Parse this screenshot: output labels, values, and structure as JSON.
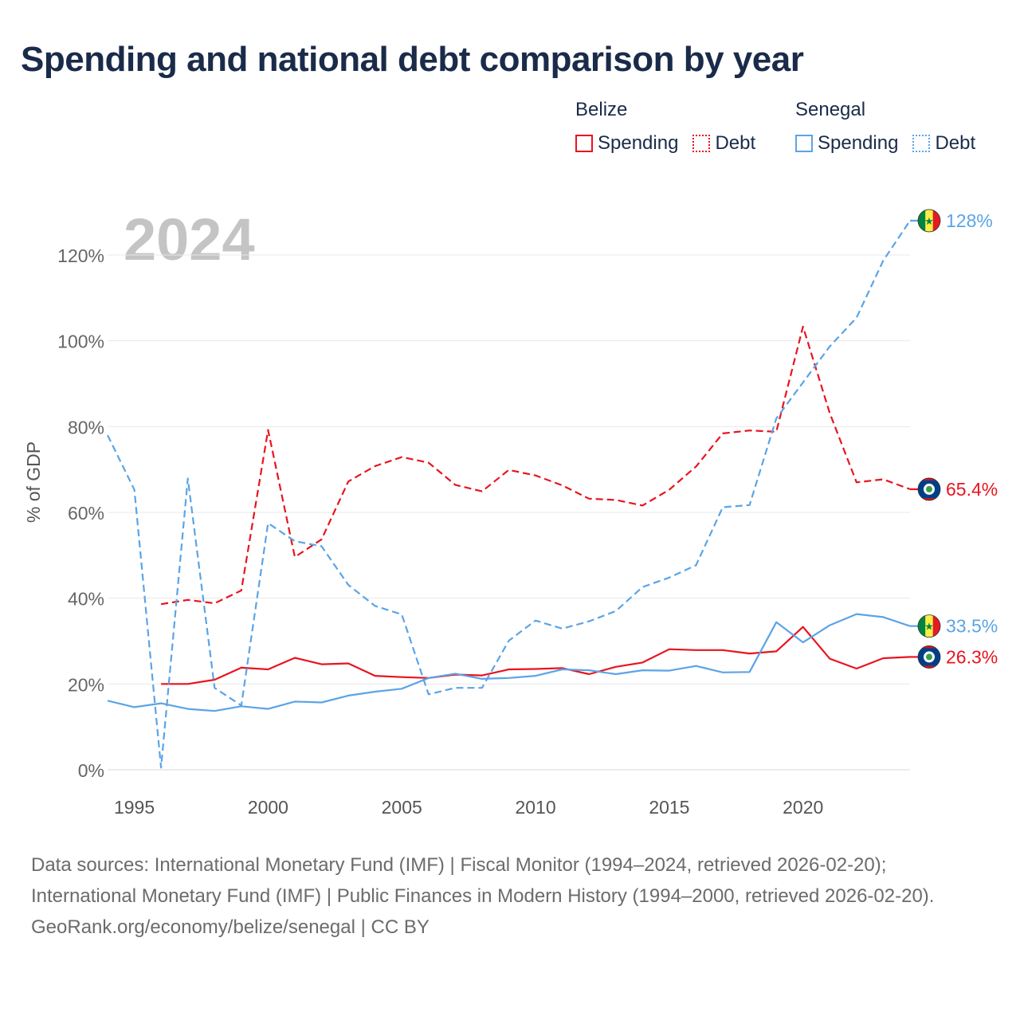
{
  "title": "Spending and national debt comparison by year",
  "legend": {
    "groups": [
      {
        "country": "Belize",
        "color": "#e8141f",
        "items": [
          {
            "label": "Spending",
            "style": "solid"
          },
          {
            "label": "Debt",
            "style": "dotted"
          }
        ]
      },
      {
        "country": "Senegal",
        "color": "#5ba4e6",
        "items": [
          {
            "label": "Spending",
            "style": "solid"
          },
          {
            "label": "Debt",
            "style": "dotted"
          }
        ]
      }
    ]
  },
  "chart_data": {
    "type": "line",
    "year_label": "2024",
    "ylabel": "% of GDP",
    "xlim": [
      1994,
      2024
    ],
    "ylim": [
      0,
      130
    ],
    "x_ticks": [
      1995,
      2000,
      2005,
      2010,
      2015,
      2020
    ],
    "y_ticks": [
      0,
      20,
      40,
      60,
      80,
      100,
      120
    ],
    "y_tick_labels": [
      "0%",
      "20%",
      "40%",
      "60%",
      "80%",
      "100%",
      "120%"
    ],
    "series": [
      {
        "name": "Belize Spending",
        "country": "Belize",
        "color": "#e8141f",
        "dash": "solid",
        "x": [
          1996,
          1997,
          1998,
          1999,
          2000,
          2001,
          2002,
          2003,
          2004,
          2005,
          2006,
          2007,
          2008,
          2009,
          2010,
          2011,
          2012,
          2013,
          2014,
          2015,
          2016,
          2017,
          2018,
          2019,
          2020,
          2021,
          2022,
          2023,
          2024
        ],
        "values": [
          20.0,
          20.0,
          21.0,
          23.8,
          23.4,
          26.1,
          24.6,
          24.8,
          21.9,
          21.6,
          21.4,
          22.2,
          22.0,
          23.4,
          23.5,
          23.7,
          22.3,
          24.0,
          25.0,
          28.1,
          27.9,
          27.9,
          27.1,
          27.6,
          33.3,
          25.9,
          23.6,
          26.0,
          26.3
        ],
        "end_label": "26.3%",
        "flag": "belize"
      },
      {
        "name": "Belize Debt",
        "country": "Belize",
        "color": "#e8141f",
        "dash": "dashed",
        "x": [
          1996,
          1997,
          1998,
          1999,
          2000,
          2001,
          2002,
          2003,
          2004,
          2005,
          2006,
          2007,
          2008,
          2009,
          2010,
          2011,
          2012,
          2013,
          2014,
          2015,
          2016,
          2017,
          2018,
          2019,
          2020,
          2021,
          2022,
          2023,
          2024
        ],
        "values": [
          38.6,
          39.6,
          38.8,
          41.8,
          79.2,
          49.6,
          53.7,
          67.2,
          70.8,
          72.9,
          71.6,
          66.4,
          64.9,
          69.9,
          68.6,
          66.3,
          63.2,
          62.9,
          61.6,
          65.3,
          70.7,
          78.4,
          79.1,
          78.8,
          103.3,
          83.1,
          67.0,
          67.7,
          65.4
        ],
        "end_label": "65.4%",
        "flag": "belize"
      },
      {
        "name": "Senegal Spending",
        "country": "Senegal",
        "color": "#5ba4e6",
        "dash": "solid",
        "x": [
          1994,
          1995,
          1996,
          1997,
          1998,
          1999,
          2000,
          2001,
          2002,
          2003,
          2004,
          2005,
          2006,
          2007,
          2008,
          2009,
          2010,
          2011,
          2012,
          2013,
          2014,
          2015,
          2016,
          2017,
          2018,
          2019,
          2020,
          2021,
          2022,
          2023,
          2024
        ],
        "values": [
          16.1,
          14.6,
          15.5,
          14.2,
          13.7,
          14.8,
          14.2,
          15.9,
          15.7,
          17.3,
          18.2,
          18.9,
          21.4,
          22.4,
          21.2,
          21.4,
          21.9,
          23.4,
          23.2,
          22.3,
          23.2,
          23.1,
          24.2,
          22.7,
          22.8,
          34.4,
          29.7,
          33.7,
          36.3,
          35.6,
          33.5
        ],
        "end_label": "33.5%",
        "flag": "senegal"
      },
      {
        "name": "Senegal Debt",
        "country": "Senegal",
        "color": "#5ba4e6",
        "dash": "dashed",
        "x": [
          1994,
          1995,
          1996,
          1997,
          1998,
          1999,
          2000,
          2001,
          2002,
          2003,
          2004,
          2005,
          2006,
          2007,
          2008,
          2009,
          2010,
          2011,
          2012,
          2013,
          2014,
          2015,
          2016,
          2017,
          2018,
          2019,
          2020,
          2021,
          2022,
          2023,
          2024
        ],
        "values": [
          78.0,
          65.3,
          0.5,
          67.9,
          19.1,
          15.0,
          57.5,
          53.3,
          52.1,
          43.1,
          38.2,
          36.2,
          17.6,
          19.1,
          19.1,
          30.1,
          34.8,
          32.9,
          34.6,
          37.0,
          42.6,
          44.8,
          47.7,
          61.2,
          61.7,
          81.9,
          90.3,
          98.7,
          105.4,
          118.7,
          128.0
        ],
        "end_label": "128%",
        "flag": "senegal"
      }
    ]
  },
  "footer": {
    "sources": "Data sources: International Monetary Fund (IMF) | Fiscal Monitor (1994–2024, retrieved 2026-02-20); International Monetary Fund (IMF) | Public Finances in Modern History (1994–2000, retrieved 2026-02-20).",
    "attribution": "GeoRank.org/economy/belize/senegal | CC BY"
  }
}
